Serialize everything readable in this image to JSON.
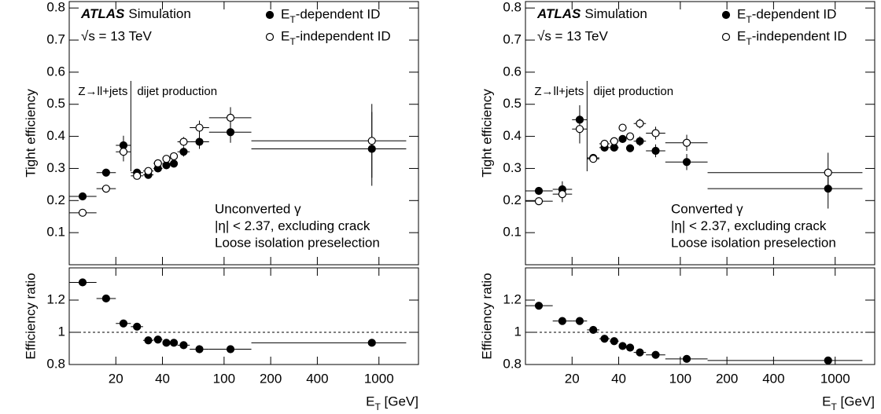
{
  "chart_data": [
    {
      "type": "errorbar",
      "ylabel": "Tight efficiency",
      "label": "ATLAS",
      "sublabel": "Simulation",
      "energy": "√s = 13 TeV",
      "region_labels": [
        "Z→ll+jets",
        "dijet production"
      ],
      "divider": 25,
      "annotations": [
        "Unconverted γ",
        "|η| < 2.37, excluding crack",
        "Loose isolation preselection"
      ],
      "legend": "top-right",
      "xscale": "log",
      "xlim": [
        10,
        1800
      ],
      "xticks": [
        20,
        40,
        100,
        200,
        400,
        1000
      ],
      "ylim": [
        0,
        0.82
      ],
      "yticks": [
        0.1,
        0.2,
        0.3,
        0.4,
        0.5,
        0.6,
        0.7,
        0.8
      ],
      "x": [
        12.2,
        17.3,
        22.4,
        27.4,
        32.4,
        37.4,
        42.4,
        47.4,
        54.8,
        69.3,
        110,
        900
      ],
      "bins": [
        10,
        15,
        20,
        25,
        30,
        35,
        40,
        45,
        50,
        60,
        80,
        150,
        1500
      ],
      "series": [
        {
          "name": "ET-dependent ID",
          "marker": "filled",
          "color": "#000000",
          "values": [
            0.213,
            0.287,
            0.372,
            0.287,
            0.28,
            0.3,
            0.31,
            0.315,
            0.352,
            0.383,
            0.413,
            0.361
          ],
          "yerr": [
            0.005,
            0.012,
            0.03,
            0.008,
            0.008,
            0.008,
            0.01,
            0.012,
            0.015,
            0.022,
            0.033,
            0.115
          ]
        },
        {
          "name": "ET-independent ID",
          "marker": "open",
          "color": "#000000",
          "values": [
            0.162,
            0.237,
            0.352,
            0.277,
            0.292,
            0.316,
            0.33,
            0.338,
            0.383,
            0.427,
            0.458,
            0.386
          ],
          "yerr": [
            0.006,
            0.012,
            0.03,
            0.008,
            0.008,
            0.008,
            0.01,
            0.012,
            0.015,
            0.022,
            0.033,
            0.115
          ]
        }
      ]
    },
    {
      "type": "errorbar",
      "ylabel": "Efficiency ratio",
      "xlabel": "ET [GeV]",
      "hline": 1,
      "xscale": "log",
      "xlim": [
        10,
        1800
      ],
      "xticks": [
        20,
        40,
        100,
        200,
        400,
        1000
      ],
      "ylim": [
        0.8,
        1.4
      ],
      "yticks": [
        0.8,
        1,
        1.2
      ],
      "x": [
        12.2,
        17.3,
        22.4,
        27.4,
        32.4,
        37.4,
        42.4,
        47.4,
        54.8,
        69.3,
        110,
        900
      ],
      "bins": [
        10,
        15,
        20,
        25,
        30,
        35,
        40,
        45,
        50,
        60,
        80,
        150,
        1500
      ],
      "series": [
        {
          "marker": "filled",
          "color": "#000000",
          "values": [
            1.31,
            1.21,
            1.055,
            1.035,
            0.95,
            0.955,
            0.935,
            0.935,
            0.92,
            0.895,
            0.895,
            0.935
          ],
          "yerr": [
            0.008,
            0.01,
            0.012,
            0.008,
            0.008,
            0.008,
            0.008,
            0.008,
            0.008,
            0.008,
            0.01,
            0.012
          ]
        }
      ]
    },
    {
      "type": "errorbar",
      "ylabel": "Tight efficiency",
      "label": "ATLAS",
      "sublabel": "Simulation",
      "energy": "√s = 13 TeV",
      "region_labels": [
        "Z→ll+jets",
        "dijet production"
      ],
      "divider": 25,
      "annotations": [
        "Converted γ",
        "|η| < 2.37, excluding crack",
        "Loose isolation preselection"
      ],
      "legend": "top-right",
      "xscale": "log",
      "xlim": [
        10,
        1800
      ],
      "xticks": [
        20,
        40,
        100,
        200,
        400,
        1000
      ],
      "ylim": [
        0,
        0.82
      ],
      "yticks": [
        0.1,
        0.2,
        0.3,
        0.4,
        0.5,
        0.6,
        0.7,
        0.8
      ],
      "x": [
        12.2,
        17.3,
        22.4,
        27.4,
        32.4,
        37.4,
        42.4,
        47.4,
        54.8,
        69.3,
        110,
        900
      ],
      "bins": [
        10,
        15,
        20,
        25,
        30,
        35,
        40,
        45,
        50,
        60,
        80,
        150,
        1500
      ],
      "series": [
        {
          "name": "ET-dependent ID",
          "marker": "filled",
          "color": "#000000",
          "values": [
            0.23,
            0.235,
            0.452,
            0.333,
            0.365,
            0.365,
            0.392,
            0.363,
            0.385,
            0.355,
            0.32,
            0.237
          ],
          "yerr": [
            0.005,
            0.025,
            0.045,
            0.008,
            0.01,
            0.01,
            0.01,
            0.012,
            0.015,
            0.02,
            0.025,
            0.062
          ]
        },
        {
          "name": "ET-independent ID",
          "marker": "open",
          "color": "#000000",
          "values": [
            0.198,
            0.22,
            0.423,
            0.33,
            0.377,
            0.385,
            0.427,
            0.4,
            0.44,
            0.41,
            0.38,
            0.287
          ],
          "yerr": [
            0.005,
            0.025,
            0.045,
            0.008,
            0.01,
            0.01,
            0.01,
            0.012,
            0.015,
            0.02,
            0.025,
            0.062
          ]
        }
      ]
    },
    {
      "type": "errorbar",
      "ylabel": "Efficiency ratio",
      "xlabel": "ET [GeV]",
      "hline": 1,
      "xscale": "log",
      "xlim": [
        10,
        1800
      ],
      "xticks": [
        20,
        40,
        100,
        200,
        400,
        1000
      ],
      "ylim": [
        0.8,
        1.4
      ],
      "yticks": [
        0.8,
        1,
        1.2
      ],
      "x": [
        12.2,
        17.3,
        22.4,
        27.4,
        32.4,
        37.4,
        42.4,
        47.4,
        54.8,
        69.3,
        110,
        900
      ],
      "bins": [
        10,
        15,
        20,
        25,
        30,
        35,
        40,
        45,
        50,
        60,
        80,
        150,
        1500
      ],
      "series": [
        {
          "marker": "filled",
          "color": "#000000",
          "values": [
            1.165,
            1.07,
            1.07,
            1.015,
            0.96,
            0.945,
            0.915,
            0.905,
            0.875,
            0.86,
            0.835,
            0.825
          ],
          "yerr": [
            0.008,
            0.01,
            0.012,
            0.008,
            0.008,
            0.008,
            0.008,
            0.008,
            0.008,
            0.008,
            0.01,
            0.012
          ]
        }
      ]
    }
  ]
}
